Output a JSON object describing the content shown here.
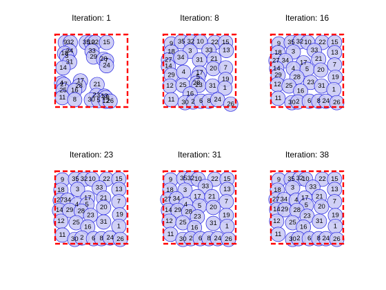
{
  "figure": {
    "background": "#ffffff",
    "circle_fill": "#c8c8f5",
    "circle_stroke": "#2020e0",
    "boundary_color": "#ff0000",
    "boundary_style": "dashed"
  },
  "chart_data": [
    {
      "type": "scatter",
      "title": "Iteration: 1",
      "circles": [
        {
          "id": "9",
          "x": 0.14,
          "y": 0.89
        },
        {
          "id": "32",
          "x": 0.21,
          "y": 0.89
        },
        {
          "id": "35",
          "x": 0.43,
          "y": 0.89
        },
        {
          "id": "10",
          "x": 0.5,
          "y": 0.89
        },
        {
          "id": "22",
          "x": 0.55,
          "y": 0.89
        },
        {
          "id": "15",
          "x": 0.71,
          "y": 0.89
        },
        {
          "id": "34",
          "x": 0.2,
          "y": 0.77
        },
        {
          "id": "18",
          "x": 0.13,
          "y": 0.74
        },
        {
          "id": "33",
          "x": 0.51,
          "y": 0.77
        },
        {
          "id": "3",
          "x": 0.16,
          "y": 0.7
        },
        {
          "id": "29",
          "x": 0.53,
          "y": 0.69
        },
        {
          "id": "20",
          "x": 0.67,
          "y": 0.66
        },
        {
          "id": "31",
          "x": 0.2,
          "y": 0.62
        },
        {
          "id": "7",
          "x": 0.71,
          "y": 0.64
        },
        {
          "id": "14",
          "x": 0.11,
          "y": 0.54
        },
        {
          "id": "24",
          "x": 0.71,
          "y": 0.57
        },
        {
          "id": "21",
          "x": 0.58,
          "y": 0.31
        },
        {
          "id": "17",
          "x": 0.35,
          "y": 0.36
        },
        {
          "id": "4",
          "x": 0.09,
          "y": 0.33
        },
        {
          "id": "27",
          "x": 0.12,
          "y": 0.31
        },
        {
          "id": "28",
          "x": 0.33,
          "y": 0.29
        },
        {
          "id": "25",
          "x": 0.11,
          "y": 0.23
        },
        {
          "id": "16",
          "x": 0.27,
          "y": 0.23
        },
        {
          "id": "23",
          "x": 0.57,
          "y": 0.16
        },
        {
          "id": "13",
          "x": 0.68,
          "y": 0.15
        },
        {
          "id": "19",
          "x": 0.7,
          "y": 0.13
        },
        {
          "id": "11",
          "x": 0.1,
          "y": 0.13
        },
        {
          "id": "8",
          "x": 0.27,
          "y": 0.1
        },
        {
          "id": "30",
          "x": 0.5,
          "y": 0.1
        },
        {
          "id": "5",
          "x": 0.6,
          "y": 0.09
        },
        {
          "id": "12",
          "x": 0.7,
          "y": 0.08
        },
        {
          "id": "26",
          "x": 0.76,
          "y": 0.08
        }
      ]
    },
    {
      "type": "scatter",
      "title": "Iteration: 8",
      "circles": [
        {
          "id": "9",
          "x": 0.11,
          "y": 0.87
        },
        {
          "id": "35",
          "x": 0.25,
          "y": 0.9
        },
        {
          "id": "32",
          "x": 0.38,
          "y": 0.9
        },
        {
          "id": "10",
          "x": 0.51,
          "y": 0.9
        },
        {
          "id": "22",
          "x": 0.71,
          "y": 0.89
        },
        {
          "id": "15",
          "x": 0.86,
          "y": 0.89
        },
        {
          "id": "18",
          "x": 0.11,
          "y": 0.76
        },
        {
          "id": "3",
          "x": 0.37,
          "y": 0.77
        },
        {
          "id": "33",
          "x": 0.63,
          "y": 0.78
        },
        {
          "id": "13",
          "x": 0.87,
          "y": 0.78
        },
        {
          "id": "27",
          "x": 0.07,
          "y": 0.65
        },
        {
          "id": "34",
          "x": 0.24,
          "y": 0.68
        },
        {
          "id": "31",
          "x": 0.5,
          "y": 0.65
        },
        {
          "id": "21",
          "x": 0.7,
          "y": 0.66
        },
        {
          "id": "14",
          "x": 0.07,
          "y": 0.56
        },
        {
          "id": "20",
          "x": 0.69,
          "y": 0.53
        },
        {
          "id": "7",
          "x": 0.86,
          "y": 0.54
        },
        {
          "id": "29",
          "x": 0.11,
          "y": 0.44
        },
        {
          "id": "4",
          "x": 0.28,
          "y": 0.48
        },
        {
          "id": "17",
          "x": 0.5,
          "y": 0.47
        },
        {
          "id": "5",
          "x": 0.48,
          "y": 0.41
        },
        {
          "id": "19",
          "x": 0.86,
          "y": 0.38
        },
        {
          "id": "12",
          "x": 0.09,
          "y": 0.29
        },
        {
          "id": "25",
          "x": 0.27,
          "y": 0.3
        },
        {
          "id": "28",
          "x": 0.46,
          "y": 0.33
        },
        {
          "id": "23",
          "x": 0.49,
          "y": 0.3
        },
        {
          "id": "31b",
          "label": "31",
          "x": 0.68,
          "y": 0.29
        },
        {
          "id": "1",
          "x": 0.85,
          "y": 0.26
        },
        {
          "id": "16",
          "x": 0.37,
          "y": 0.18
        },
        {
          "id": "11",
          "x": 0.11,
          "y": 0.1
        },
        {
          "id": "30",
          "x": 0.3,
          "y": 0.06
        },
        {
          "id": "2",
          "x": 0.41,
          "y": 0.07
        },
        {
          "id": "6",
          "x": 0.52,
          "y": 0.08
        },
        {
          "id": "8",
          "x": 0.63,
          "y": 0.08
        },
        {
          "id": "24",
          "x": 0.75,
          "y": 0.1
        },
        {
          "id": "26",
          "x": 0.93,
          "y": 0.04
        }
      ]
    },
    {
      "type": "scatter",
      "title": "Iteration: 16",
      "circles": [
        {
          "id": "9",
          "x": 0.11,
          "y": 0.87
        },
        {
          "id": "35",
          "x": 0.28,
          "y": 0.89
        },
        {
          "id": "32",
          "x": 0.4,
          "y": 0.9
        },
        {
          "id": "10",
          "x": 0.51,
          "y": 0.89
        },
        {
          "id": "22",
          "x": 0.71,
          "y": 0.89
        },
        {
          "id": "15",
          "x": 0.88,
          "y": 0.89
        },
        {
          "id": "3",
          "x": 0.31,
          "y": 0.76
        },
        {
          "id": "33",
          "x": 0.6,
          "y": 0.78
        },
        {
          "id": "13",
          "x": 0.88,
          "y": 0.75
        },
        {
          "id": "18",
          "x": 0.1,
          "y": 0.75
        },
        {
          "id": "27",
          "x": 0.07,
          "y": 0.64
        },
        {
          "id": "34",
          "x": 0.2,
          "y": 0.64
        },
        {
          "id": "17",
          "x": 0.45,
          "y": 0.61
        },
        {
          "id": "21",
          "x": 0.66,
          "y": 0.66
        },
        {
          "id": "7",
          "x": 0.88,
          "y": 0.58
        },
        {
          "id": "14",
          "x": 0.08,
          "y": 0.53
        },
        {
          "id": "4",
          "x": 0.31,
          "y": 0.53
        },
        {
          "id": "5",
          "x": 0.5,
          "y": 0.52
        },
        {
          "id": "20",
          "x": 0.69,
          "y": 0.51
        },
        {
          "id": "29",
          "x": 0.1,
          "y": 0.44
        },
        {
          "id": "28",
          "x": 0.36,
          "y": 0.41
        },
        {
          "id": "23",
          "x": 0.55,
          "y": 0.34
        },
        {
          "id": "19",
          "x": 0.89,
          "y": 0.41
        },
        {
          "id": "12",
          "x": 0.09,
          "y": 0.31
        },
        {
          "id": "25",
          "x": 0.25,
          "y": 0.29
        },
        {
          "id": "31",
          "x": 0.7,
          "y": 0.29
        },
        {
          "id": "16",
          "x": 0.41,
          "y": 0.22
        },
        {
          "id": "1",
          "x": 0.87,
          "y": 0.24
        },
        {
          "id": "11",
          "x": 0.1,
          "y": 0.12
        },
        {
          "id": "30",
          "x": 0.29,
          "y": 0.06
        },
        {
          "id": "2",
          "x": 0.37,
          "y": 0.07
        },
        {
          "id": "6",
          "x": 0.53,
          "y": 0.08
        },
        {
          "id": "8",
          "x": 0.66,
          "y": 0.08
        },
        {
          "id": "24",
          "x": 0.76,
          "y": 0.08
        },
        {
          "id": "26",
          "x": 0.91,
          "y": 0.06
        }
      ]
    },
    {
      "type": "scatter",
      "title": "Iteration: 23",
      "circles": [
        {
          "id": "9",
          "x": 0.1,
          "y": 0.88
        },
        {
          "id": "35",
          "x": 0.28,
          "y": 0.89
        },
        {
          "id": "32",
          "x": 0.4,
          "y": 0.89
        },
        {
          "id": "10",
          "x": 0.51,
          "y": 0.89
        },
        {
          "id": "22",
          "x": 0.71,
          "y": 0.89
        },
        {
          "id": "15",
          "x": 0.88,
          "y": 0.89
        },
        {
          "id": "18",
          "x": 0.08,
          "y": 0.74
        },
        {
          "id": "3",
          "x": 0.31,
          "y": 0.75
        },
        {
          "id": "33",
          "x": 0.61,
          "y": 0.77
        },
        {
          "id": "13",
          "x": 0.88,
          "y": 0.75
        },
        {
          "id": "27",
          "x": 0.07,
          "y": 0.6
        },
        {
          "id": "34",
          "x": 0.17,
          "y": 0.6
        },
        {
          "id": "17",
          "x": 0.45,
          "y": 0.63
        },
        {
          "id": "21",
          "x": 0.67,
          "y": 0.63
        },
        {
          "id": "4",
          "x": 0.3,
          "y": 0.54
        },
        {
          "id": "5",
          "x": 0.44,
          "y": 0.54
        },
        {
          "id": "7",
          "x": 0.88,
          "y": 0.58
        },
        {
          "id": "14",
          "x": 0.06,
          "y": 0.46
        },
        {
          "id": "29",
          "x": 0.2,
          "y": 0.46
        },
        {
          "id": "28",
          "x": 0.36,
          "y": 0.45
        },
        {
          "id": "20",
          "x": 0.67,
          "y": 0.5
        },
        {
          "id": "23",
          "x": 0.49,
          "y": 0.39
        },
        {
          "id": "19",
          "x": 0.89,
          "y": 0.4
        },
        {
          "id": "12",
          "x": 0.08,
          "y": 0.31
        },
        {
          "id": "25",
          "x": 0.29,
          "y": 0.29
        },
        {
          "id": "31",
          "x": 0.67,
          "y": 0.3
        },
        {
          "id": "16",
          "x": 0.45,
          "y": 0.23
        },
        {
          "id": "1",
          "x": 0.88,
          "y": 0.24
        },
        {
          "id": "11",
          "x": 0.1,
          "y": 0.12
        },
        {
          "id": "30",
          "x": 0.27,
          "y": 0.06
        },
        {
          "id": "2",
          "x": 0.37,
          "y": 0.08
        },
        {
          "id": "6",
          "x": 0.53,
          "y": 0.07
        },
        {
          "id": "8",
          "x": 0.64,
          "y": 0.07
        },
        {
          "id": "24",
          "x": 0.76,
          "y": 0.08
        },
        {
          "id": "26",
          "x": 0.9,
          "y": 0.06
        }
      ]
    },
    {
      "type": "scatter",
      "title": "Iteration: 31",
      "circles": [
        {
          "id": "9",
          "x": 0.1,
          "y": 0.88
        },
        {
          "id": "35",
          "x": 0.28,
          "y": 0.9
        },
        {
          "id": "32",
          "x": 0.38,
          "y": 0.9
        },
        {
          "id": "10",
          "x": 0.48,
          "y": 0.89
        },
        {
          "id": "22",
          "x": 0.71,
          "y": 0.89
        },
        {
          "id": "15",
          "x": 0.88,
          "y": 0.89
        },
        {
          "id": "18",
          "x": 0.09,
          "y": 0.74
        },
        {
          "id": "3",
          "x": 0.3,
          "y": 0.74
        },
        {
          "id": "33",
          "x": 0.58,
          "y": 0.79
        },
        {
          "id": "13",
          "x": 0.88,
          "y": 0.75
        },
        {
          "id": "27",
          "x": 0.06,
          "y": 0.61
        },
        {
          "id": "34",
          "x": 0.18,
          "y": 0.62
        },
        {
          "id": "17",
          "x": 0.47,
          "y": 0.65
        },
        {
          "id": "21",
          "x": 0.67,
          "y": 0.65
        },
        {
          "id": "7",
          "x": 0.87,
          "y": 0.58
        },
        {
          "id": "4",
          "x": 0.31,
          "y": 0.54
        },
        {
          "id": "5",
          "x": 0.5,
          "y": 0.52
        },
        {
          "id": "20",
          "x": 0.69,
          "y": 0.5
        },
        {
          "id": "14",
          "x": 0.07,
          "y": 0.46
        },
        {
          "id": "29",
          "x": 0.2,
          "y": 0.46
        },
        {
          "id": "28",
          "x": 0.35,
          "y": 0.44
        },
        {
          "id": "23",
          "x": 0.47,
          "y": 0.37
        },
        {
          "id": "19",
          "x": 0.87,
          "y": 0.39
        },
        {
          "id": "12",
          "x": 0.08,
          "y": 0.31
        },
        {
          "id": "25",
          "x": 0.27,
          "y": 0.29
        },
        {
          "id": "31",
          "x": 0.69,
          "y": 0.28
        },
        {
          "id": "16",
          "x": 0.43,
          "y": 0.22
        },
        {
          "id": "1",
          "x": 0.88,
          "y": 0.24
        },
        {
          "id": "11",
          "x": 0.1,
          "y": 0.13
        },
        {
          "id": "30",
          "x": 0.27,
          "y": 0.06
        },
        {
          "id": "2",
          "x": 0.38,
          "y": 0.07
        },
        {
          "id": "6",
          "x": 0.51,
          "y": 0.07
        },
        {
          "id": "8",
          "x": 0.63,
          "y": 0.07
        },
        {
          "id": "24",
          "x": 0.75,
          "y": 0.07
        },
        {
          "id": "26",
          "x": 0.9,
          "y": 0.06
        }
      ]
    },
    {
      "type": "scatter",
      "title": "Iteration: 38",
      "circles": [
        {
          "id": "9",
          "x": 0.11,
          "y": 0.88
        },
        {
          "id": "35",
          "x": 0.28,
          "y": 0.89
        },
        {
          "id": "32",
          "x": 0.4,
          "y": 0.9
        },
        {
          "id": "10",
          "x": 0.48,
          "y": 0.89
        },
        {
          "id": "22",
          "x": 0.71,
          "y": 0.89
        },
        {
          "id": "15",
          "x": 0.88,
          "y": 0.89
        },
        {
          "id": "18",
          "x": 0.09,
          "y": 0.74
        },
        {
          "id": "3",
          "x": 0.3,
          "y": 0.77
        },
        {
          "id": "33",
          "x": 0.58,
          "y": 0.78
        },
        {
          "id": "13",
          "x": 0.88,
          "y": 0.75
        },
        {
          "id": "27",
          "x": 0.07,
          "y": 0.61
        },
        {
          "id": "34",
          "x": 0.18,
          "y": 0.61
        },
        {
          "id": "4",
          "x": 0.35,
          "y": 0.6
        },
        {
          "id": "17",
          "x": 0.47,
          "y": 0.63
        },
        {
          "id": "21",
          "x": 0.67,
          "y": 0.65
        },
        {
          "id": "7",
          "x": 0.88,
          "y": 0.58
        },
        {
          "id": "5",
          "x": 0.49,
          "y": 0.53
        },
        {
          "id": "20",
          "x": 0.7,
          "y": 0.51
        },
        {
          "id": "14",
          "x": 0.08,
          "y": 0.47
        },
        {
          "id": "29",
          "x": 0.19,
          "y": 0.47
        },
        {
          "id": "28",
          "x": 0.36,
          "y": 0.46
        },
        {
          "id": "23",
          "x": 0.5,
          "y": 0.38
        },
        {
          "id": "19",
          "x": 0.89,
          "y": 0.39
        },
        {
          "id": "12",
          "x": 0.08,
          "y": 0.31
        },
        {
          "id": "25",
          "x": 0.3,
          "y": 0.29
        },
        {
          "id": "31",
          "x": 0.67,
          "y": 0.31
        },
        {
          "id": "16",
          "x": 0.45,
          "y": 0.23
        },
        {
          "id": "1",
          "x": 0.89,
          "y": 0.24
        },
        {
          "id": "11",
          "x": 0.1,
          "y": 0.13
        },
        {
          "id": "30",
          "x": 0.3,
          "y": 0.06
        },
        {
          "id": "2",
          "x": 0.38,
          "y": 0.07
        },
        {
          "id": "6",
          "x": 0.53,
          "y": 0.07
        },
        {
          "id": "8",
          "x": 0.66,
          "y": 0.07
        },
        {
          "id": "24",
          "x": 0.76,
          "y": 0.07
        },
        {
          "id": "26",
          "x": 0.91,
          "y": 0.06
        }
      ]
    }
  ]
}
